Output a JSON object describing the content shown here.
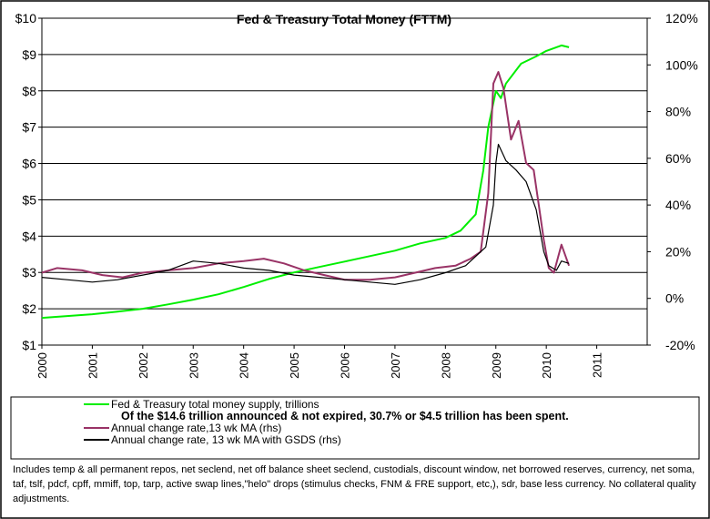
{
  "chart_data": {
    "type": "line",
    "title": "Fed & Treasury Total Money (FTTM)",
    "left_axis": {
      "ylim": [
        1,
        10
      ],
      "ticks": [
        1,
        2,
        3,
        4,
        5,
        6,
        7,
        8,
        9,
        10
      ],
      "tick_labels": [
        "$1",
        "$2",
        "$3",
        "$4",
        "$5",
        "$6",
        "$7",
        "$8",
        "$9",
        "$10"
      ]
    },
    "right_axis": {
      "ylim": [
        -20,
        120
      ],
      "ticks": [
        -20,
        0,
        20,
        40,
        60,
        80,
        100,
        120
      ],
      "tick_labels": [
        "-20%",
        "0%",
        "20%",
        "40%",
        "60%",
        "80%",
        "100%",
        "120%"
      ]
    },
    "x_axis": {
      "xlim": [
        2000,
        2012
      ],
      "ticks": [
        2000,
        2001,
        2002,
        2003,
        2004,
        2005,
        2006,
        2007,
        2008,
        2009,
        2010,
        2011
      ],
      "tick_labels": [
        "2000",
        "2001",
        "2002",
        "2003",
        "2004",
        "2005",
        "2006",
        "2007",
        "2008",
        "2009",
        "2010",
        "2011"
      ]
    },
    "grid": "horizontal",
    "series": [
      {
        "name": "Fed & Treasury total money supply, trillions",
        "axis": "left",
        "color": "#00ee00",
        "points": [
          [
            2000.0,
            1.75
          ],
          [
            2000.5,
            1.8
          ],
          [
            2001.0,
            1.85
          ],
          [
            2001.5,
            1.92
          ],
          [
            2002.0,
            2.0
          ],
          [
            2002.5,
            2.12
          ],
          [
            2003.0,
            2.25
          ],
          [
            2003.5,
            2.4
          ],
          [
            2004.0,
            2.6
          ],
          [
            2004.5,
            2.82
          ],
          [
            2005.0,
            3.0
          ],
          [
            2005.5,
            3.15
          ],
          [
            2006.0,
            3.3
          ],
          [
            2006.5,
            3.45
          ],
          [
            2007.0,
            3.6
          ],
          [
            2007.5,
            3.8
          ],
          [
            2008.0,
            3.95
          ],
          [
            2008.3,
            4.15
          ],
          [
            2008.6,
            4.6
          ],
          [
            2008.75,
            5.8
          ],
          [
            2008.85,
            7.0
          ],
          [
            2009.0,
            8.0
          ],
          [
            2009.1,
            7.8
          ],
          [
            2009.2,
            8.2
          ],
          [
            2009.5,
            8.75
          ],
          [
            2009.8,
            8.95
          ],
          [
            2010.0,
            9.1
          ],
          [
            2010.2,
            9.2
          ],
          [
            2010.3,
            9.25
          ],
          [
            2010.45,
            9.2
          ]
        ]
      },
      {
        "name": "Annual change rate,13 wk MA (rhs)",
        "axis": "right",
        "color": "#993366",
        "points": [
          [
            2000.0,
            11
          ],
          [
            2000.3,
            13
          ],
          [
            2000.8,
            12
          ],
          [
            2001.2,
            10
          ],
          [
            2001.6,
            9
          ],
          [
            2002.0,
            11
          ],
          [
            2002.5,
            12
          ],
          [
            2003.0,
            13
          ],
          [
            2003.5,
            15
          ],
          [
            2004.0,
            16
          ],
          [
            2004.4,
            17
          ],
          [
            2004.8,
            15
          ],
          [
            2005.2,
            12
          ],
          [
            2005.6,
            10
          ],
          [
            2006.0,
            8
          ],
          [
            2006.5,
            8
          ],
          [
            2007.0,
            9
          ],
          [
            2007.4,
            11
          ],
          [
            2007.8,
            13
          ],
          [
            2008.2,
            14
          ],
          [
            2008.5,
            17
          ],
          [
            2008.7,
            20
          ],
          [
            2008.85,
            45
          ],
          [
            2008.95,
            92
          ],
          [
            2009.05,
            97
          ],
          [
            2009.15,
            90
          ],
          [
            2009.3,
            68
          ],
          [
            2009.45,
            76
          ],
          [
            2009.6,
            58
          ],
          [
            2009.75,
            55
          ],
          [
            2009.85,
            40
          ],
          [
            2009.95,
            25
          ],
          [
            2010.05,
            13
          ],
          [
            2010.15,
            11
          ],
          [
            2010.3,
            23
          ],
          [
            2010.4,
            17
          ],
          [
            2010.45,
            14
          ]
        ]
      },
      {
        "name": "Annual change rate, 13 wk MA with GSDS (rhs)",
        "axis": "right",
        "color": "#000000",
        "points": [
          [
            2000.0,
            9
          ],
          [
            2000.5,
            8
          ],
          [
            2001.0,
            7
          ],
          [
            2001.5,
            8
          ],
          [
            2002.0,
            10
          ],
          [
            2002.5,
            12
          ],
          [
            2003.0,
            16
          ],
          [
            2003.5,
            15
          ],
          [
            2004.0,
            13
          ],
          [
            2004.5,
            12
          ],
          [
            2005.0,
            10
          ],
          [
            2005.5,
            9
          ],
          [
            2006.0,
            8
          ],
          [
            2006.5,
            7
          ],
          [
            2007.0,
            6
          ],
          [
            2007.5,
            8
          ],
          [
            2008.0,
            11
          ],
          [
            2008.4,
            14
          ],
          [
            2008.6,
            18
          ],
          [
            2008.8,
            22
          ],
          [
            2008.95,
            40
          ],
          [
            2009.0,
            58
          ],
          [
            2009.05,
            66
          ],
          [
            2009.2,
            59
          ],
          [
            2009.4,
            55
          ],
          [
            2009.6,
            50
          ],
          [
            2009.8,
            38
          ],
          [
            2009.95,
            20
          ],
          [
            2010.05,
            14
          ],
          [
            2010.2,
            12
          ],
          [
            2010.3,
            16
          ],
          [
            2010.45,
            15
          ]
        ]
      }
    ],
    "legend": {
      "position": "bottom",
      "items": [
        {
          "label": "Fed & Treasury total money supply, trillions",
          "color": "#00ee00"
        },
        {
          "label": "Of the $14.6 trillion announced & not expired, 30.7% or $4.5 trillion has been spent.",
          "color": null
        },
        {
          "label": "Annual change rate,13 wk MA (rhs)",
          "color": "#993366"
        },
        {
          "label": "Annual change rate, 13 wk MA with GSDS (rhs)",
          "color": "#000000"
        }
      ]
    },
    "footnote": "Includes temp & all permanent repos, net seclend, net off balance sheet seclend, custodials, discount window, net borrowed reserves, currency, net soma, taf, tslf, pdcf, cpff, mmiff, top, tarp, active swap lines,\"helo\" drops (stimulus checks, FNM & FRE support, etc,), sdr, base less currency. No collateral quality adjustments."
  }
}
